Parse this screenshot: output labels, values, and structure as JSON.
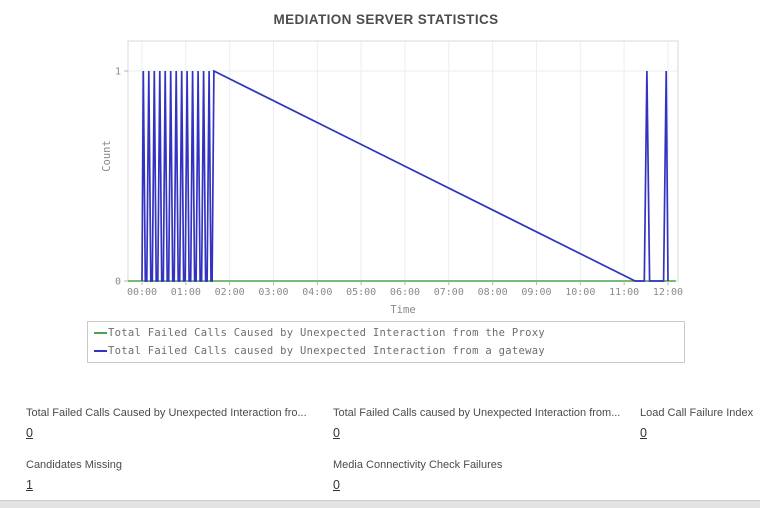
{
  "chart_data": {
    "type": "line",
    "title": "MEDIATION SERVER STATISTICS",
    "xlabel": "Time",
    "ylabel": "Count",
    "xlim": [
      0,
      12
    ],
    "ylim": [
      0,
      1
    ],
    "grid": true,
    "legend_position": "bottom",
    "colors": {
      "grid": "#ededed",
      "border": "#d8d8d8",
      "tick": "#b4b4b4",
      "tick_text": "#8a8a8a"
    },
    "x_ticks": [
      {
        "hour": 0,
        "label": "00:00"
      },
      {
        "hour": 1,
        "label": "01:00"
      },
      {
        "hour": 2,
        "label": "02:00"
      },
      {
        "hour": 3,
        "label": "03:00"
      },
      {
        "hour": 4,
        "label": "04:00"
      },
      {
        "hour": 5,
        "label": "05:00"
      },
      {
        "hour": 6,
        "label": "06:00"
      },
      {
        "hour": 7,
        "label": "07:00"
      },
      {
        "hour": 8,
        "label": "08:00"
      },
      {
        "hour": 9,
        "label": "09:00"
      },
      {
        "hour": 10,
        "label": "10:00"
      },
      {
        "hour": 11,
        "label": "11:00"
      },
      {
        "hour": 12,
        "label": "12:00"
      }
    ],
    "y_ticks": [
      {
        "value": 0,
        "label": "0"
      },
      {
        "value": 1,
        "label": "1"
      }
    ],
    "series": [
      {
        "name": "Total Failed Calls Caused by Unexpected Interaction from the Proxy",
        "color": "#4ba34b",
        "stroke_width": 1.4,
        "points": [
          [
            -0.32,
            0
          ],
          [
            12.18,
            0
          ]
        ]
      },
      {
        "name": "Total Failed Calls caused by Unexpected Interaction from a gateway",
        "color": "#3333c2",
        "stroke_width": 1.7,
        "points": [
          [
            0,
            0
          ],
          [
            0.03,
            1
          ],
          [
            0.075,
            0
          ],
          [
            0.11,
            0
          ],
          [
            0.155,
            1
          ],
          [
            0.2,
            0
          ],
          [
            0.235,
            0
          ],
          [
            0.28,
            1
          ],
          [
            0.325,
            0
          ],
          [
            0.36,
            0
          ],
          [
            0.405,
            1
          ],
          [
            0.45,
            0
          ],
          [
            0.485,
            0
          ],
          [
            0.53,
            1
          ],
          [
            0.575,
            0
          ],
          [
            0.61,
            0
          ],
          [
            0.655,
            1
          ],
          [
            0.7,
            0
          ],
          [
            0.735,
            0
          ],
          [
            0.78,
            1
          ],
          [
            0.825,
            0
          ],
          [
            0.86,
            0
          ],
          [
            0.905,
            1
          ],
          [
            0.95,
            0
          ],
          [
            0.985,
            0
          ],
          [
            1.03,
            1
          ],
          [
            1.075,
            0
          ],
          [
            1.11,
            0
          ],
          [
            1.155,
            1
          ],
          [
            1.2,
            0
          ],
          [
            1.235,
            0
          ],
          [
            1.28,
            1
          ],
          [
            1.325,
            0
          ],
          [
            1.36,
            0
          ],
          [
            1.405,
            1
          ],
          [
            1.45,
            0
          ],
          [
            1.485,
            0
          ],
          [
            1.53,
            1
          ],
          [
            1.575,
            0
          ],
          [
            1.6,
            0
          ],
          [
            1.64,
            1
          ],
          [
            11.25,
            0
          ],
          [
            11.46,
            0
          ],
          [
            11.52,
            1
          ],
          [
            11.58,
            0
          ],
          [
            11.9,
            0
          ],
          [
            11.96,
            1
          ],
          [
            12,
            0
          ]
        ]
      }
    ]
  },
  "stats": {
    "items": [
      {
        "label": "Total Failed Calls Caused by Unexpected Interaction fro...",
        "value": "0"
      },
      {
        "label": "Total Failed Calls caused by Unexpected Interaction from...",
        "value": "0"
      },
      {
        "label": "Load Call Failure Index",
        "value": "0"
      },
      {
        "label": "Candidates Missing",
        "value": "1"
      },
      {
        "label": "Media Connectivity Check Failures",
        "value": "0"
      }
    ]
  }
}
